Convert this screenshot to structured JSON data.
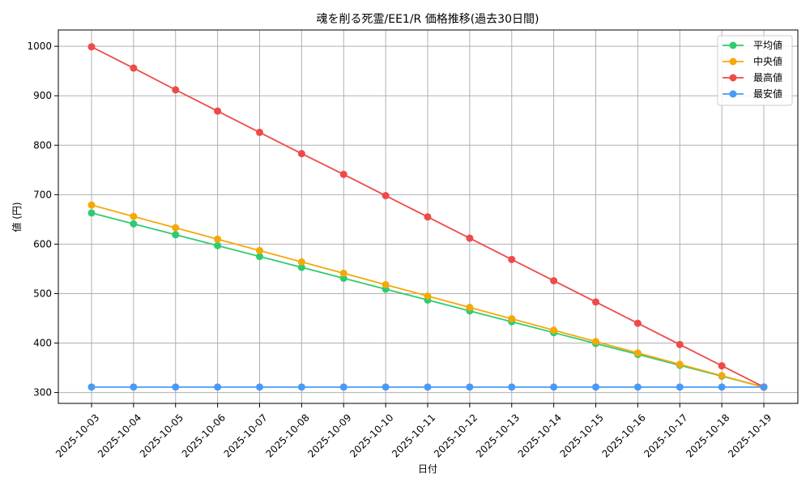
{
  "chart_data": {
    "type": "line",
    "title": "魂を削る死霊/EE1/R 価格推移(過去30日間)",
    "xlabel": "日付",
    "ylabel": "値 (円)",
    "categories": [
      "2025-10-03",
      "2025-10-04",
      "2025-10-05",
      "2025-10-06",
      "2025-10-07",
      "2025-10-08",
      "2025-10-09",
      "2025-10-10",
      "2025-10-11",
      "2025-10-12",
      "2025-10-13",
      "2025-10-14",
      "2025-10-15",
      "2025-10-16",
      "2025-10-17",
      "2025-10-18",
      "2025-10-19"
    ],
    "ylim": [
      278,
      1033
    ],
    "yticks": [
      300,
      400,
      500,
      600,
      700,
      800,
      900,
      1000
    ],
    "grid": true,
    "legend_position": "top-right",
    "series": [
      {
        "name": "平均値",
        "color": "#2ecc71",
        "values": [
          663,
          641,
          619,
          597,
          575,
          553,
          531,
          509,
          487,
          465,
          443,
          421,
          399,
          377,
          355,
          333,
          311
        ]
      },
      {
        "name": "中央値",
        "color": "#f5a80a",
        "values": [
          679,
          656,
          633,
          610,
          587,
          564,
          541,
          518,
          495,
          472,
          449,
          426,
          403,
          380,
          357,
          334,
          311
        ]
      },
      {
        "name": "最高値",
        "color": "#ef4a4a",
        "values": [
          999,
          956,
          912,
          869,
          826,
          783,
          741,
          698,
          655,
          612,
          569,
          526,
          483,
          440,
          397,
          354,
          311
        ]
      },
      {
        "name": "最安値",
        "color": "#4a9af5",
        "values": [
          311,
          311,
          311,
          311,
          311,
          311,
          311,
          311,
          311,
          311,
          311,
          311,
          311,
          311,
          311,
          311,
          311
        ]
      }
    ]
  }
}
